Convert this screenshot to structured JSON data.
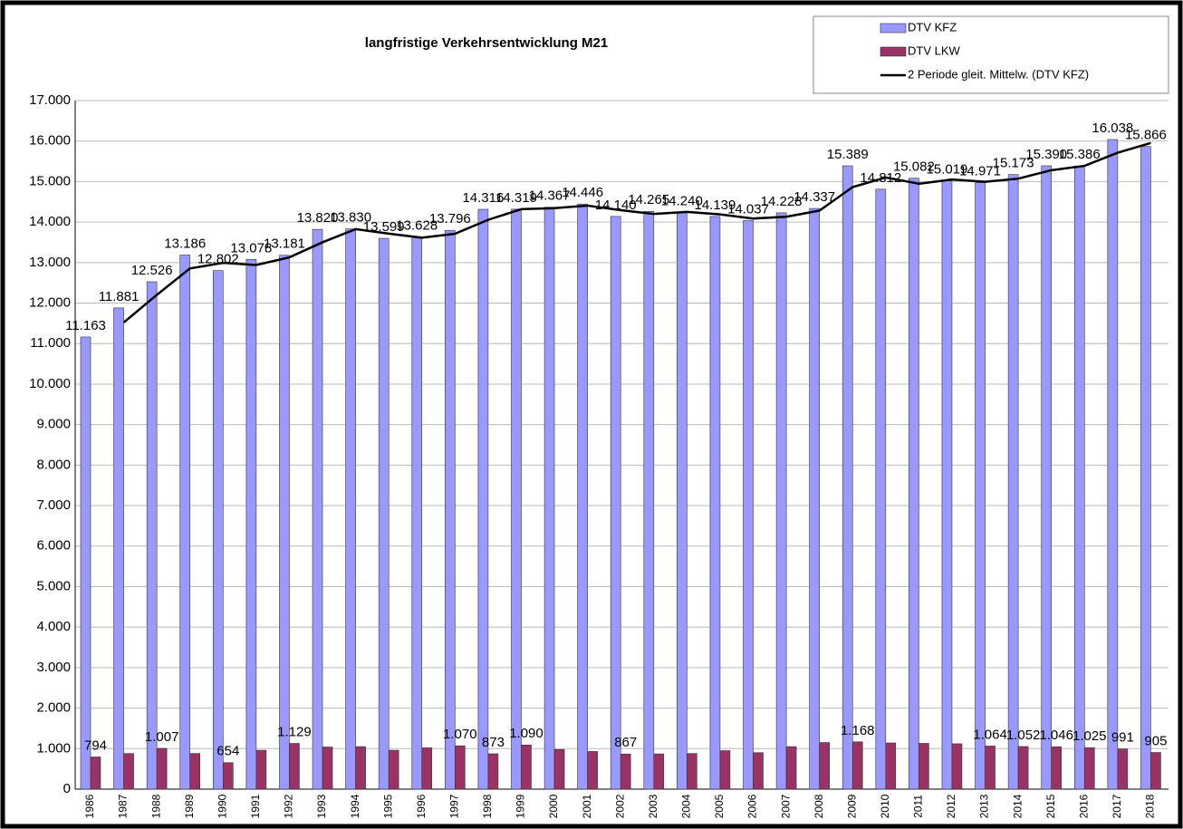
{
  "chart_data": {
    "type": "bar",
    "title": "langfristige Verkehrsentwicklung M21",
    "categories": [
      "1986",
      "1987",
      "1988",
      "1989",
      "1990",
      "1991",
      "1992",
      "1993",
      "1994",
      "1995",
      "1996",
      "1997",
      "1998",
      "1999",
      "2000",
      "2001",
      "2002",
      "2003",
      "2004",
      "2005",
      "2006",
      "2007",
      "2008",
      "2009",
      "2010",
      "2011",
      "2012",
      "2013",
      "2014",
      "2015",
      "2016",
      "2017",
      "2018"
    ],
    "series": [
      {
        "name": "DTV KFZ",
        "type": "bar",
        "color": "#9999ff",
        "values": [
          11163,
          11881,
          12526,
          13186,
          12802,
          13078,
          13181,
          13820,
          13830,
          13599,
          13628,
          13796,
          14316,
          14319,
          14367,
          14446,
          14140,
          14265,
          14240,
          14139,
          14037,
          14228,
          14337,
          15389,
          14812,
          15082,
          15019,
          14971,
          15173,
          15390,
          15386,
          16038,
          15866
        ],
        "value_labels": [
          "11.163",
          "11.881",
          "12.526",
          "13.186",
          "12.802",
          "13.078",
          "13.181",
          "13.820",
          "13.830",
          "13.599",
          "13.628",
          "13.796",
          "14.316",
          "14.319",
          "14.367",
          "14.446",
          "14.140",
          "14.265",
          "14.240",
          "14.139",
          "14.037",
          "14.228",
          "14.337",
          "15.389",
          "14.812",
          "15.082",
          "15.019",
          "14.971",
          "15.173",
          "15.390",
          "15.386",
          "16.038",
          "15.866"
        ]
      },
      {
        "name": "DTV LKW",
        "type": "bar",
        "color": "#993366",
        "values": [
          794,
          880,
          1007,
          880,
          654,
          960,
          1129,
          1040,
          1050,
          960,
          1020,
          1070,
          873,
          1090,
          980,
          930,
          867,
          870,
          880,
          950,
          900,
          1050,
          1150,
          1168,
          1140,
          1130,
          1120,
          1064,
          1052,
          1046,
          1025,
          991,
          905
        ],
        "value_labels": [
          "794",
          null,
          "1.007",
          null,
          "654",
          null,
          "1.129",
          null,
          null,
          null,
          null,
          "1.070",
          "873",
          "1.090",
          null,
          null,
          "867",
          null,
          null,
          null,
          null,
          null,
          null,
          "1.168",
          null,
          null,
          null,
          "1.064",
          "1.052",
          "1.046",
          "1.025",
          "991",
          "905"
        ]
      },
      {
        "name": "2 Periode gleit. Mittelw. (DTV KFZ)",
        "type": "line",
        "color": "#000000",
        "values": [
          null,
          11522,
          12203.5,
          12856,
          12994,
          12940,
          13129.5,
          13500.5,
          13825,
          13714.5,
          13613.5,
          13712,
          14056,
          14317.5,
          14343,
          14406.5,
          14293,
          14202.5,
          14252.5,
          14189.5,
          14088,
          14132.5,
          14282.5,
          14863,
          15100.5,
          14947,
          15050.5,
          14995,
          15072,
          15281.5,
          15388,
          15712,
          15952
        ]
      }
    ],
    "ylim": [
      0,
      17000
    ],
    "yticks": [
      0,
      {
        "value": 1000,
        "label": "1.000"
      },
      {
        "value": 2000,
        "label": "2.000"
      },
      {
        "value": 3000,
        "label": "3.000"
      },
      {
        "value": 4000,
        "label": "4.000"
      },
      {
        "value": 5000,
        "label": "5.000"
      },
      {
        "value": 6000,
        "label": "6.000"
      },
      {
        "value": 7000,
        "label": "7.000"
      },
      {
        "value": 8000,
        "label": "8.000"
      },
      {
        "value": 9000,
        "label": "9.000"
      },
      {
        "value": 10000,
        "label": "10.000"
      },
      {
        "value": 11000,
        "label": "11.000"
      },
      {
        "value": 12000,
        "label": "12.000"
      },
      {
        "value": 13000,
        "label": "13.000"
      },
      {
        "value": 14000,
        "label": "14.000"
      },
      {
        "value": 15000,
        "label": "15.000"
      },
      {
        "value": 16000,
        "label": "16.000"
      },
      {
        "value": 17000,
        "label": "17.000"
      }
    ],
    "grid": true
  }
}
